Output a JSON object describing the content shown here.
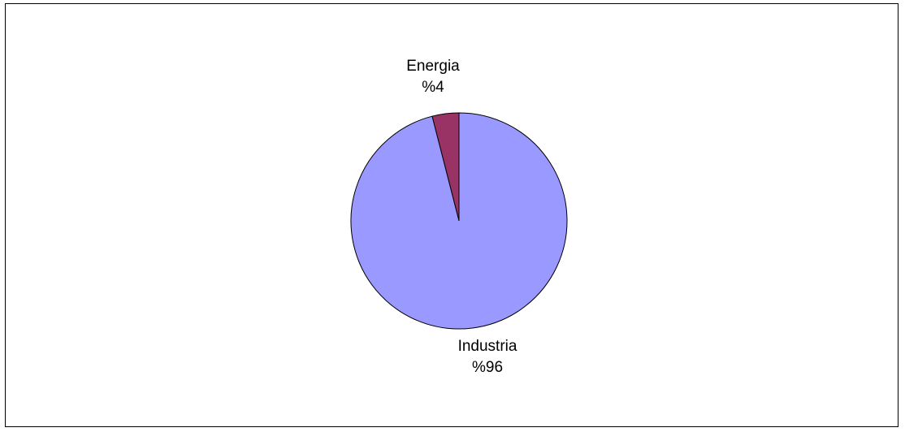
{
  "chart_data": {
    "type": "pie",
    "title": "",
    "slices": [
      {
        "name": "Energia",
        "value": 4,
        "label": "%4",
        "color": "#993366"
      },
      {
        "name": "Industria",
        "value": 96,
        "label": "%96",
        "color": "#9999FF"
      }
    ],
    "start_angle_deg": 0,
    "direction": "counterclockwise",
    "legend": "none"
  }
}
